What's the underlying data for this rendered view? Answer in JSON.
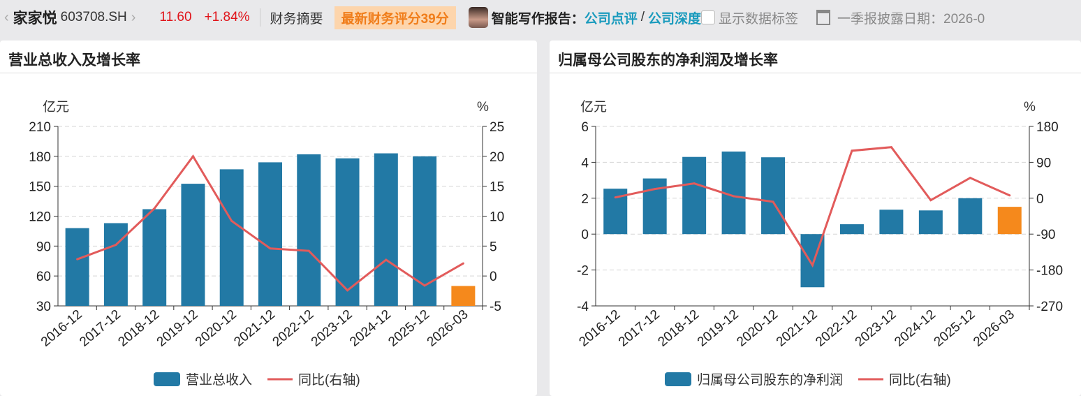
{
  "topbar": {
    "name": "家家悦",
    "code": "603708.SH",
    "price": "11.60",
    "change": "+1.84%",
    "summary": "财务摘要",
    "score": "最新财务评分39分",
    "report_label": "智能写作报告：",
    "link1": "公司点评",
    "slash": "/",
    "link2": "公司深度",
    "show_labels": "显示数据标签",
    "date_label": "一季报披露日期：2026-0"
  },
  "colors": {
    "bar": "#2279a5",
    "bar_highlight": "#f5891c",
    "line": "#e25b5b"
  },
  "chart_data": [
    {
      "type": "bar",
      "title": "营业总收入及增长率",
      "ylabel": "亿元",
      "y2label": "%",
      "categories": [
        "2016-12",
        "2017-12",
        "2018-12",
        "2019-12",
        "2020-12",
        "2021-12",
        "2022-12",
        "2023-12",
        "2024-12",
        "2025-12",
        "2026-03"
      ],
      "ylim": [
        30,
        210
      ],
      "yticks": [
        30,
        60,
        90,
        120,
        150,
        180,
        210
      ],
      "y2lim": [
        -5,
        25
      ],
      "y2ticks": [
        -5,
        0,
        5,
        10,
        15,
        20,
        25
      ],
      "series": [
        {
          "name": "营业总收入",
          "type": "bar",
          "values": [
            108,
            113,
            127,
            152.5,
            167,
            174,
            182,
            178,
            183,
            180,
            50
          ]
        },
        {
          "name": "同比(右轴)",
          "type": "line",
          "axis": "right",
          "values": [
            2.8,
            5.2,
            11.3,
            20,
            9.2,
            4.6,
            4.2,
            -2.4,
            2.7,
            -1.6,
            2.1
          ]
        }
      ],
      "legend": "bottom"
    },
    {
      "type": "bar",
      "title": "归属母公司股东的净利润及增长率",
      "ylabel": "亿元",
      "y2label": "%",
      "categories": [
        "2016-12",
        "2017-12",
        "2018-12",
        "2019-12",
        "2020-12",
        "2021-12",
        "2022-12",
        "2023-12",
        "2024-12",
        "2025-12",
        "2026-03"
      ],
      "ylim": [
        -4,
        6
      ],
      "yticks": [
        -4,
        -2,
        0,
        2,
        4,
        6
      ],
      "y2lim": [
        -270,
        180
      ],
      "y2ticks": [
        -270,
        -180,
        -90,
        0,
        90,
        180
      ],
      "series": [
        {
          "name": "归属母公司股东的净利润",
          "type": "bar",
          "values": [
            2.53,
            3.1,
            4.3,
            4.6,
            4.28,
            -2.96,
            0.55,
            1.36,
            1.32,
            2.0,
            1.52
          ]
        },
        {
          "name": "同比(右轴)",
          "type": "line",
          "axis": "right",
          "values": [
            2,
            23,
            37,
            5,
            -9,
            -168,
            119,
            128,
            -5,
            51,
            7
          ]
        }
      ],
      "legend": "bottom"
    }
  ]
}
